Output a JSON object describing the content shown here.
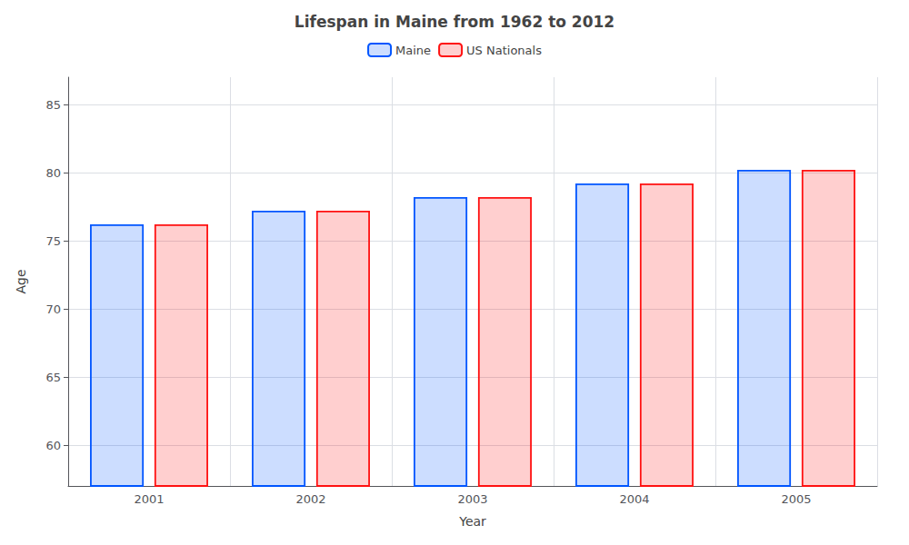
{
  "chart_data": {
    "type": "bar",
    "title": "Lifespan in Maine from 1962 to 2012",
    "xlabel": "Year",
    "ylabel": "Age",
    "categories": [
      "2001",
      "2002",
      "2003",
      "2004",
      "2005"
    ],
    "series": [
      {
        "name": "Maine",
        "color": "#0055ff",
        "values": [
          76.2,
          77.2,
          78.2,
          79.2,
          80.2
        ]
      },
      {
        "name": "US Nationals",
        "color": "#ff1111",
        "values": [
          76.2,
          77.2,
          78.2,
          79.2,
          80.2
        ]
      }
    ],
    "ylim": [
      57,
      87
    ],
    "yticks": [
      60,
      65,
      70,
      75,
      80,
      85
    ],
    "grid": true,
    "legend": "top"
  }
}
